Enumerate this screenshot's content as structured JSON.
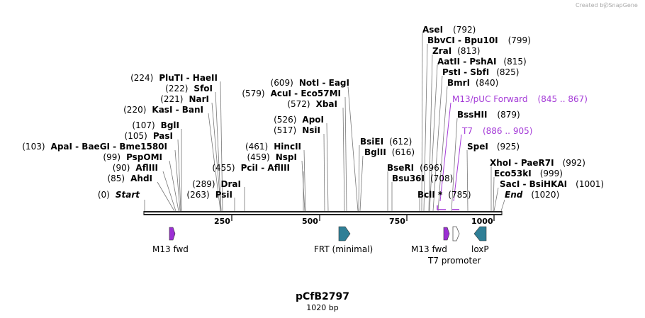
{
  "credit": "Created by SnapGene",
  "plasmid": {
    "name": "pCfB2797",
    "length_label": "1020 bp"
  },
  "axis": {
    "ticks": [
      "250",
      "500",
      "750",
      "1000"
    ]
  },
  "sites_left": [
    {
      "pos": "(0)",
      "names": "Start"
    },
    {
      "pos": "(85)",
      "names": "AhdI"
    },
    {
      "pos": "(90)",
      "names": "AflIII"
    },
    {
      "pos": "(99)",
      "names": "PspOMI"
    },
    {
      "pos": "(103)",
      "names": "ApaI  - BaeGI  - Bme1580I"
    },
    {
      "pos": "(105)",
      "names": "PasI"
    },
    {
      "pos": "(107)",
      "names": "BglI"
    },
    {
      "pos": "(220)",
      "names": "KasI  - BanI"
    },
    {
      "pos": "(221)",
      "names": "NarI"
    },
    {
      "pos": "(222)",
      "names": "SfoI"
    },
    {
      "pos": "(224)",
      "names": "PluTI  - HaeII"
    }
  ],
  "sites_mid": [
    {
      "pos": "(263)",
      "names": "PsiI"
    },
    {
      "pos": "(289)",
      "names": "DraI"
    },
    {
      "pos": "(455)",
      "names": "PciI  - AflIII"
    },
    {
      "pos": "(459)",
      "names": "NspI"
    },
    {
      "pos": "(461)",
      "names": "HincII"
    },
    {
      "pos": "(517)",
      "names": "NsiI"
    },
    {
      "pos": "(526)",
      "names": "ApoI"
    },
    {
      "pos": "(572)",
      "names": "XbaI"
    },
    {
      "pos": "(579)",
      "names": "AcuI  - Eco57MI"
    },
    {
      "pos": "(609)",
      "names": "NotI  - EagI"
    }
  ],
  "sites_center": [
    {
      "names": "BsiEI",
      "pos": "(612)"
    },
    {
      "names": "BglII",
      "pos": "(616)"
    },
    {
      "names": "BseRI",
      "pos": "(696)"
    },
    {
      "names": "Bsu36I",
      "pos": "(708)"
    },
    {
      "names": "BclI *",
      "pos": "(785)"
    }
  ],
  "sites_right": [
    {
      "names": "AseI",
      "pos": "(792)"
    },
    {
      "names": "BbvCI  - Bpu10I",
      "pos": "(799)"
    },
    {
      "names": "ZraI",
      "pos": "(813)"
    },
    {
      "names": "AatII  - PshAI",
      "pos": "(815)"
    },
    {
      "names": "PstI  - SbfI",
      "pos": "(825)"
    },
    {
      "names": "BmrI",
      "pos": "(840)"
    },
    {
      "names": "BssHII",
      "pos": "(879)"
    },
    {
      "names": "SpeI",
      "pos": "(925)"
    },
    {
      "names": "XhoI  - PaeR7I",
      "pos": "(992)"
    },
    {
      "names": "Eco53kI",
      "pos": "(999)"
    },
    {
      "names": "SacI  - BsiHKAI",
      "pos": "(1001)"
    },
    {
      "names": "End",
      "pos": "(1020)"
    }
  ],
  "primers": [
    {
      "names": "M13/pUC Forward",
      "pos": "(845 .. 867)"
    },
    {
      "names": "T7",
      "pos": "(886 .. 905)"
    }
  ],
  "features": [
    {
      "label": "M13 fwd"
    },
    {
      "label": "FRT (minimal)"
    },
    {
      "label": "M13 fwd"
    },
    {
      "label": "T7 promoter"
    },
    {
      "label": "loxP"
    }
  ],
  "colors": {
    "primer": "#a43ad7",
    "m13": "#9b2fd3",
    "frt": "#2f7f96",
    "loxp": "#2f7f96"
  }
}
